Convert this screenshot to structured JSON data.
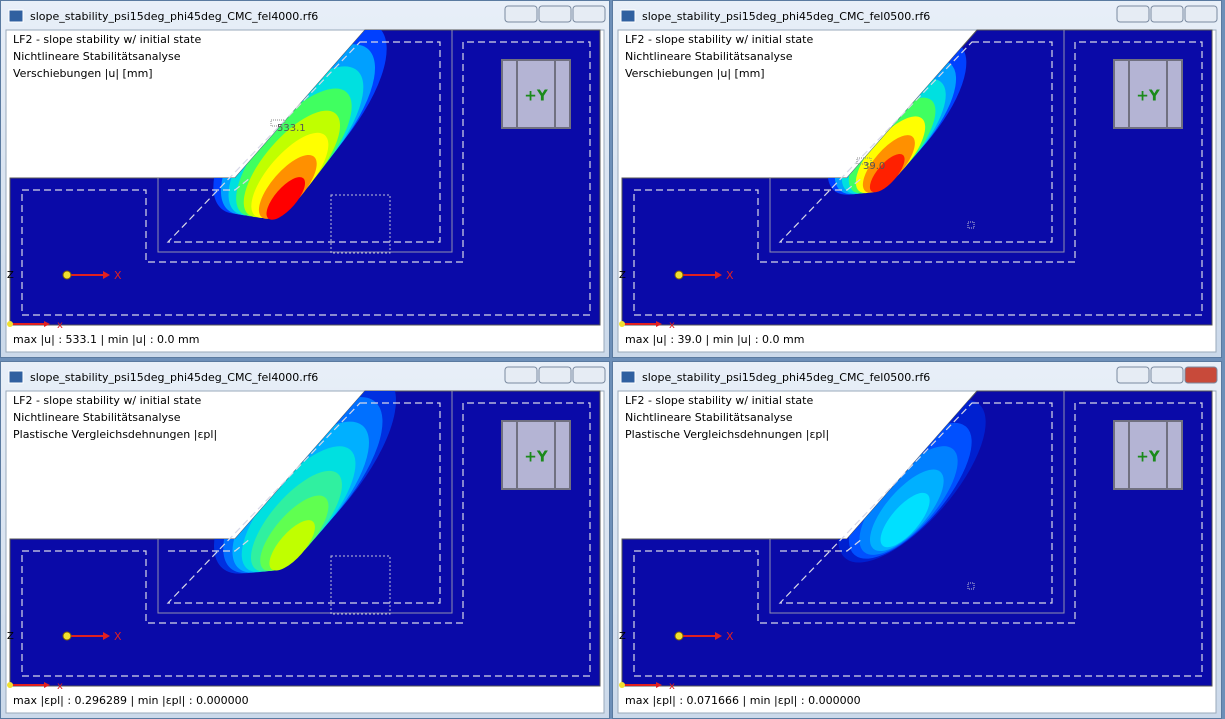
{
  "windows": [
    {
      "title": "slope_stability_psi15deg_phi45deg_CMC_fel4000.rf6",
      "lines": [
        "LF2 - slope stability w/ initial state",
        "Nichtlineare Stabilitätsanalyse",
        "Verschiebungen |u| [mm]"
      ],
      "cube_label": "+Y",
      "axis_x": "X",
      "axis_z": "Z",
      "axis_x_small": "x",
      "annotation": "533.1",
      "status": "max |u| : 533.1 | min |u| : 0.0 mm"
    },
    {
      "title": "slope_stability_psi15deg_phi45deg_CMC_fel0500.rf6",
      "lines": [
        "LF2 - slope stability w/ initial state",
        "Nichtlineare Stabilitätsanalyse",
        "Verschiebungen |u| [mm]"
      ],
      "cube_label": "+Y",
      "axis_x": "X",
      "axis_z": "Z",
      "axis_x_small": "x",
      "annotation": "39.0",
      "status": "max |u| : 39.0 | min |u| : 0.0 mm"
    },
    {
      "title": "slope_stability_psi15deg_phi45deg_CMC_fel4000.rf6",
      "lines": [
        "LF2 - slope stability w/ initial state",
        "Nichtlineare Stabilitätsanalyse",
        "Plastische Vergleichsdehnungen |εpl|"
      ],
      "cube_label": "+Y",
      "axis_x": "X",
      "axis_z": "Z",
      "axis_x_small": "x",
      "status": "max |εpl| : 0.296289 | min |εpl| : 0.000000"
    },
    {
      "title": "slope_stability_psi15deg_phi45deg_CMC_fel0500.rf6",
      "lines": [
        "LF2 - slope stability w/ initial state",
        "Nichtlineare Stabilitätsanalyse",
        "Plastische Vergleichsdehnungen |εpl|"
      ],
      "cube_label": "+Y",
      "axis_x": "X",
      "axis_z": "Z",
      "axis_x_small": "x",
      "status": "max |εpl| : 0.071666 | min |εpl| : 0.000000"
    }
  ]
}
